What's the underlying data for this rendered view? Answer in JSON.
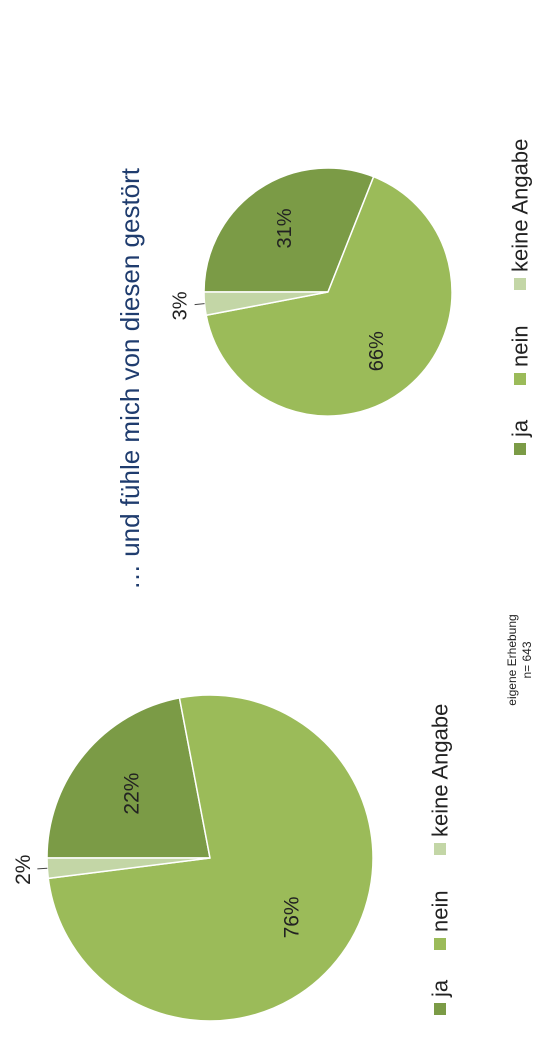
{
  "chart_data": [
    {
      "type": "pie",
      "categories": [
        "ja",
        "nein",
        "keine Angabe"
      ],
      "values": [
        22,
        76,
        2
      ],
      "value_labels": [
        "22%",
        "76%",
        "2%"
      ],
      "colors": [
        "#7b9b46",
        "#9bbb59",
        "#c3d6a6"
      ],
      "annotations": [
        "eigene Erhebung",
        "n= 643"
      ]
    },
    {
      "type": "pie",
      "title": "… und fühle mich von diesen gestört",
      "categories": [
        "ja",
        "nein",
        "keine Angabe"
      ],
      "values": [
        31,
        66,
        3
      ],
      "value_labels": [
        "31%",
        "66%",
        "3%"
      ],
      "colors": [
        "#7b9b46",
        "#9bbb59",
        "#c3d6a6"
      ]
    }
  ]
}
